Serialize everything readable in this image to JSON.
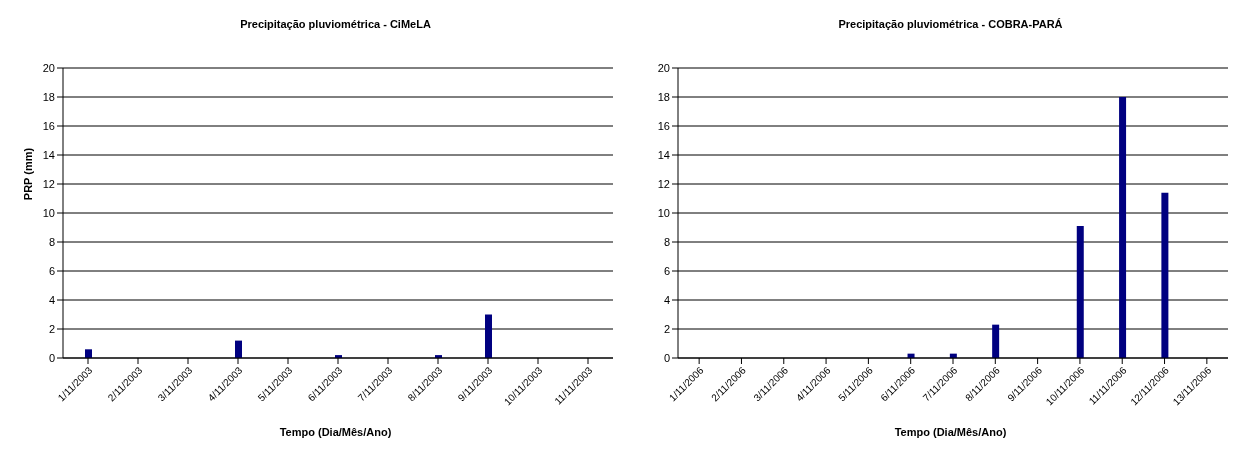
{
  "chart_data": [
    {
      "type": "bar",
      "title": "Precipitação pluviométrica - CiMeLA",
      "xlabel": "Tempo (Dia/Mês/Ano)",
      "ylabel": "PRP (mm)",
      "categories": [
        "1/11/2003",
        "2/11/2003",
        "3/11/2003",
        "4/11/2003",
        "5/11/2003",
        "6/11/2003",
        "7/11/2003",
        "8/11/2003",
        "9/11/2003",
        "10/11/2003",
        "11/11/2003"
      ],
      "series": [
        {
          "color": "#000080",
          "values": [
            0.6,
            0,
            0,
            1.2,
            0,
            0.2,
            0,
            0.2,
            3.0,
            0,
            0
          ]
        }
      ],
      "ylim": [
        0,
        20
      ],
      "yticks": [
        0,
        2,
        4,
        6,
        8,
        10,
        12,
        14,
        16,
        18,
        20
      ],
      "grid": "y",
      "legend": false
    },
    {
      "type": "bar",
      "title": "Precipitação pluviométrica - COBRA-PARÁ",
      "xlabel": "Tempo (Dia/Mês/Ano)",
      "categories": [
        "1/11/2006",
        "2/11/2006",
        "3/11/2006",
        "4/11/2006",
        "5/11/2006",
        "6/11/2006",
        "7/11/2006",
        "8/11/2006",
        "9/11/2006",
        "10/11/2006",
        "11/11/2006",
        "12/11/2006",
        "13/11/2006"
      ],
      "series": [
        {
          "color": "#000080",
          "values": [
            0,
            0,
            0,
            0,
            0,
            0.3,
            0.3,
            2.3,
            0,
            9.1,
            18,
            11.4,
            0
          ]
        }
      ],
      "ylim": [
        0,
        20
      ],
      "yticks": [
        0,
        2,
        4,
        6,
        8,
        10,
        12,
        14,
        16,
        18,
        20
      ],
      "grid": "y",
      "legend": false
    }
  ]
}
